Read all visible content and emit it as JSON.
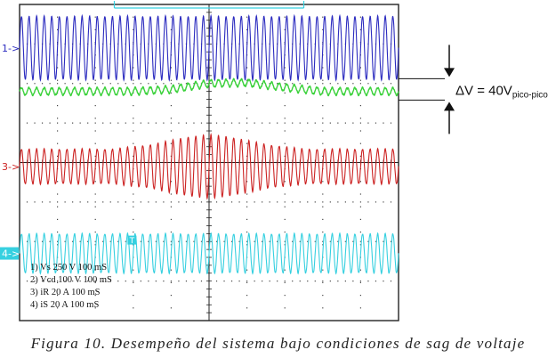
{
  "chart_data": {
    "type": "line",
    "title": "Desempeño del sistema bajo condiciones de sag de voltaje",
    "xlabel": "",
    "ylabel": "",
    "xlim": [
      0,
      1000
    ],
    "x_unit": "ms",
    "time_per_division_ms": 100,
    "divisions": {
      "x": 10,
      "y": 8
    },
    "trigger_marker": "T",
    "series": [
      {
        "name": "Vs",
        "channel": 1,
        "marker": "1->",
        "color": "#2b2bbf",
        "scale": "250 V",
        "time_scale": "100 mS",
        "envelope_div": {
          "x": [
            0,
            250,
            400,
            500,
            600,
            750,
            1000
          ],
          "amplitude": [
            1.0,
            1.0,
            1.0,
            1.0,
            1.0,
            1.0,
            1.0
          ]
        },
        "cycles": 50
      },
      {
        "name": "Vcd",
        "channel": 2,
        "marker": "",
        "color": "#3ad13a",
        "scale": "100 V",
        "time_scale": "100 mS",
        "offset_profile_div": {
          "x": [
            0,
            300,
            400,
            500,
            600,
            700,
            800,
            1000
          ],
          "offset": [
            0.0,
            0.0,
            0.05,
            0.2,
            0.22,
            0.1,
            0.0,
            0.0
          ]
        },
        "cycles": 50
      },
      {
        "name": "iR",
        "channel": 3,
        "marker": "3->",
        "color": "#cc2222",
        "scale": "20 A",
        "time_scale": "100 mS",
        "envelope_div": {
          "x": [
            0,
            250,
            350,
            450,
            500,
            550,
            650,
            750,
            1000
          ],
          "amplitude": [
            0.55,
            0.55,
            0.7,
            0.95,
            1.0,
            0.95,
            0.7,
            0.55,
            0.55
          ]
        },
        "cycles": 50
      },
      {
        "name": "iS",
        "channel": 4,
        "marker": "4->",
        "color": "#36d0e0",
        "scale": "20 A",
        "time_scale": "100 mS",
        "envelope_div": {
          "x": [
            0,
            500,
            1000
          ],
          "amplitude": [
            0.62,
            0.62,
            0.62
          ]
        },
        "cycles": 50
      }
    ],
    "settings_lines": [
      "1) Vs  250  V   100 mS",
      "2) Vcd  100  V   100 mS",
      "3) iR  20  A   100 mS",
      "4) iS  20  A   100 mS"
    ],
    "annotation": {
      "delta_symbol": "ΔV",
      "text": " = 40V",
      "subscript": "pico-pico"
    }
  },
  "figure": {
    "caption": "Figura 10. Desempeño del sistema bajo condiciones de sag de voltaje"
  },
  "colors": {
    "grid": "#222222",
    "screen_bg": "#ffffff",
    "ch1": "#2b2bbf",
    "ch2": "#3ad13a",
    "ch3": "#cc2222",
    "ch4": "#36d0e0"
  }
}
